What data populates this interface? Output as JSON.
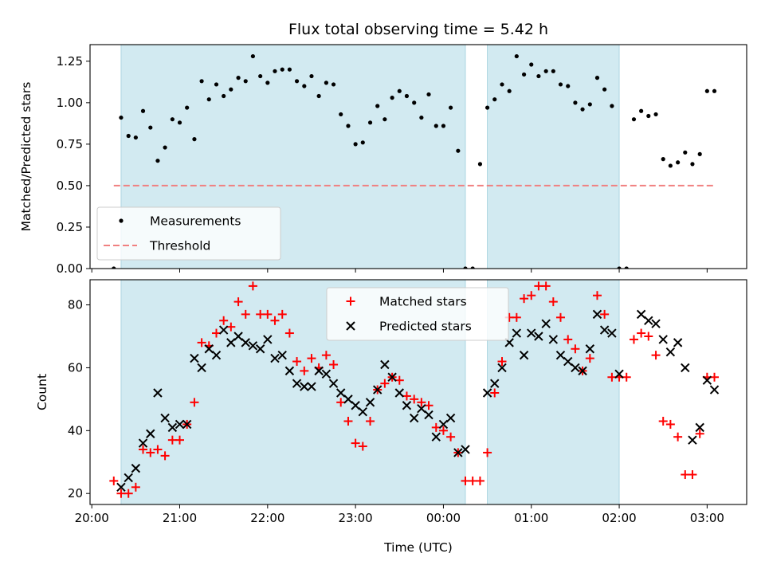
{
  "title": "Flux total observing time = 5.42 h",
  "chart_data": [
    {
      "type": "scatter",
      "panel": "top",
      "ylabel": "Matched/Predicted stars",
      "xlabel": "",
      "ylim": [
        0,
        1.35
      ],
      "yticks": [
        0.0,
        0.25,
        0.5,
        0.75,
        1.0,
        1.25
      ],
      "ytick_labels": [
        "0.00",
        "0.25",
        "0.50",
        "0.75",
        "1.00",
        "1.25"
      ],
      "x_unit": "hours since 20:00 UTC",
      "xlim": [
        -0.02,
        7.45
      ],
      "shaded_intervals": [
        [
          0.333,
          4.25
        ],
        [
          4.5,
          6.0
        ]
      ],
      "shade_color": "#add8e6",
      "grid": false,
      "legend_position": "lower-left",
      "series": [
        {
          "name": "Measurements",
          "color": "#000000",
          "marker": "dot",
          "x": [
            0.25,
            0.333,
            0.417,
            0.5,
            0.583,
            0.667,
            0.75,
            0.833,
            0.917,
            1.0,
            1.083,
            1.167,
            1.25,
            1.333,
            1.417,
            1.5,
            1.583,
            1.667,
            1.75,
            1.833,
            1.917,
            2.0,
            2.083,
            2.167,
            2.25,
            2.333,
            2.417,
            2.5,
            2.583,
            2.667,
            2.75,
            2.833,
            2.917,
            3.0,
            3.083,
            3.167,
            3.25,
            3.333,
            3.417,
            3.5,
            3.583,
            3.667,
            3.75,
            3.833,
            3.917,
            4.0,
            4.083,
            4.167,
            4.25,
            4.333,
            4.417,
            4.5,
            4.583,
            4.667,
            4.75,
            4.833,
            4.917,
            5.0,
            5.083,
            5.167,
            5.25,
            5.333,
            5.417,
            5.5,
            5.583,
            5.667,
            5.75,
            5.833,
            5.917,
            6.0,
            6.083,
            6.167,
            6.25,
            6.333,
            6.417,
            6.5,
            6.583,
            6.667,
            6.75,
            6.833,
            6.917,
            7.0,
            7.083
          ],
          "y": [
            0.0,
            0.91,
            0.8,
            0.79,
            0.95,
            0.85,
            0.65,
            0.73,
            0.9,
            0.88,
            0.97,
            0.78,
            1.13,
            1.02,
            1.11,
            1.04,
            1.08,
            1.15,
            1.13,
            1.28,
            1.16,
            1.12,
            1.19,
            1.2,
            1.2,
            1.13,
            1.1,
            1.16,
            1.04,
            1.12,
            1.11,
            0.93,
            0.86,
            0.75,
            0.76,
            0.88,
            0.98,
            0.9,
            1.03,
            1.07,
            1.04,
            1.0,
            0.91,
            1.05,
            0.86,
            0.86,
            0.97,
            0.71,
            0.0,
            0.0,
            0.63,
            0.97,
            1.02,
            1.11,
            1.07,
            1.28,
            1.17,
            1.23,
            1.16,
            1.19,
            1.19,
            1.11,
            1.1,
            1.0,
            0.96,
            0.99,
            1.15,
            1.08,
            0.98,
            0.0,
            0.0,
            0.9,
            0.95,
            0.92,
            0.93,
            0.66,
            0.62,
            0.64,
            0.7,
            0.63,
            0.69,
            1.07,
            1.07
          ]
        },
        {
          "name": "Threshold",
          "color": "#f08080",
          "style": "dashed",
          "x": [
            0.25,
            7.08
          ],
          "y": [
            0.5,
            0.5
          ]
        }
      ]
    },
    {
      "type": "scatter",
      "panel": "bottom",
      "ylabel": "Count",
      "xlabel": "Time (UTC)",
      "ylim": [
        16.5,
        88
      ],
      "yticks": [
        20,
        40,
        60,
        80
      ],
      "ytick_labels": [
        "20",
        "40",
        "60",
        "80"
      ],
      "x_unit": "hours since 20:00 UTC",
      "xlim": [
        -0.02,
        7.45
      ],
      "xticks": [
        0,
        1,
        2,
        3,
        4,
        5,
        6,
        7
      ],
      "xtick_labels": [
        "20:00",
        "21:00",
        "22:00",
        "23:00",
        "00:00",
        "01:00",
        "02:00",
        "03:00"
      ],
      "shaded_intervals": [
        [
          0.333,
          4.25
        ],
        [
          4.5,
          6.0
        ]
      ],
      "shade_color": "#add8e6",
      "grid": false,
      "legend_position": "upper-center",
      "series": [
        {
          "name": "Matched stars",
          "color": "#ff0000",
          "marker": "plus",
          "x": [
            0.25,
            0.333,
            0.417,
            0.5,
            0.583,
            0.667,
            0.75,
            0.833,
            0.917,
            1.0,
            1.083,
            1.167,
            1.25,
            1.333,
            1.417,
            1.5,
            1.583,
            1.667,
            1.75,
            1.833,
            1.917,
            2.0,
            2.083,
            2.167,
            2.25,
            2.333,
            2.417,
            2.5,
            2.583,
            2.667,
            2.75,
            2.833,
            2.917,
            3.0,
            3.083,
            3.167,
            3.25,
            3.333,
            3.417,
            3.5,
            3.583,
            3.667,
            3.75,
            3.833,
            3.917,
            4.0,
            4.083,
            4.167,
            4.25,
            4.333,
            4.417,
            4.5,
            4.583,
            4.667,
            4.75,
            4.833,
            4.917,
            5.0,
            5.083,
            5.167,
            5.25,
            5.333,
            5.417,
            5.5,
            5.583,
            5.667,
            5.75,
            5.833,
            5.917,
            6.0,
            6.083,
            6.167,
            6.25,
            6.333,
            6.417,
            6.5,
            6.583,
            6.667,
            6.75,
            6.833,
            6.917,
            7.0,
            7.083
          ],
          "y": [
            24,
            20,
            20,
            22,
            34,
            33,
            34,
            32,
            37,
            37,
            42,
            49,
            68,
            67,
            71,
            75,
            73,
            81,
            77,
            86,
            77,
            77,
            75,
            77,
            71,
            62,
            59,
            63,
            60,
            64,
            61,
            49,
            43,
            36,
            35,
            43,
            53,
            55,
            57,
            56,
            51,
            50,
            49,
            48,
            41,
            40,
            38,
            33,
            24,
            24,
            24,
            33,
            52,
            62,
            76,
            76,
            82,
            83,
            86,
            86,
            81,
            76,
            69,
            66,
            59,
            63,
            83,
            77,
            57,
            57,
            57,
            69,
            71,
            70,
            64,
            43,
            42,
            38,
            26,
            26,
            39,
            57,
            57
          ]
        },
        {
          "name": "Predicted stars",
          "color": "#000000",
          "marker": "x",
          "x": [
            0.333,
            0.417,
            0.5,
            0.583,
            0.667,
            0.75,
            0.833,
            0.917,
            1.0,
            1.083,
            1.167,
            1.25,
            1.333,
            1.417,
            1.5,
            1.583,
            1.667,
            1.75,
            1.833,
            1.917,
            2.0,
            2.083,
            2.167,
            2.25,
            2.333,
            2.417,
            2.5,
            2.583,
            2.667,
            2.75,
            2.833,
            2.917,
            3.0,
            3.083,
            3.167,
            3.25,
            3.333,
            3.417,
            3.5,
            3.583,
            3.667,
            3.75,
            3.833,
            3.917,
            4.0,
            4.083,
            4.167,
            4.25,
            4.5,
            4.583,
            4.667,
            4.75,
            4.833,
            4.917,
            5.0,
            5.083,
            5.167,
            5.25,
            5.333,
            5.417,
            5.5,
            5.583,
            5.667,
            5.75,
            5.833,
            5.917,
            6.0,
            6.25,
            6.333,
            6.417,
            6.5,
            6.583,
            6.667,
            6.75,
            6.833,
            6.917,
            7.0,
            7.083
          ],
          "y": [
            22,
            25,
            28,
            36,
            39,
            52,
            44,
            41,
            42,
            42,
            63,
            60,
            66,
            64,
            72,
            68,
            70,
            68,
            67,
            66,
            69,
            63,
            64,
            59,
            55,
            54,
            54,
            59,
            58,
            55,
            52,
            50,
            48,
            46,
            49,
            53,
            61,
            57,
            52,
            48,
            44,
            47,
            45,
            38,
            42,
            44,
            33,
            34,
            52,
            55,
            60,
            68,
            71,
            64,
            71,
            70,
            74,
            69,
            64,
            62,
            60,
            59,
            66,
            77,
            72,
            71,
            58,
            77,
            75,
            74,
            69,
            65,
            68,
            60,
            37,
            41,
            56,
            53
          ]
        }
      ]
    }
  ]
}
